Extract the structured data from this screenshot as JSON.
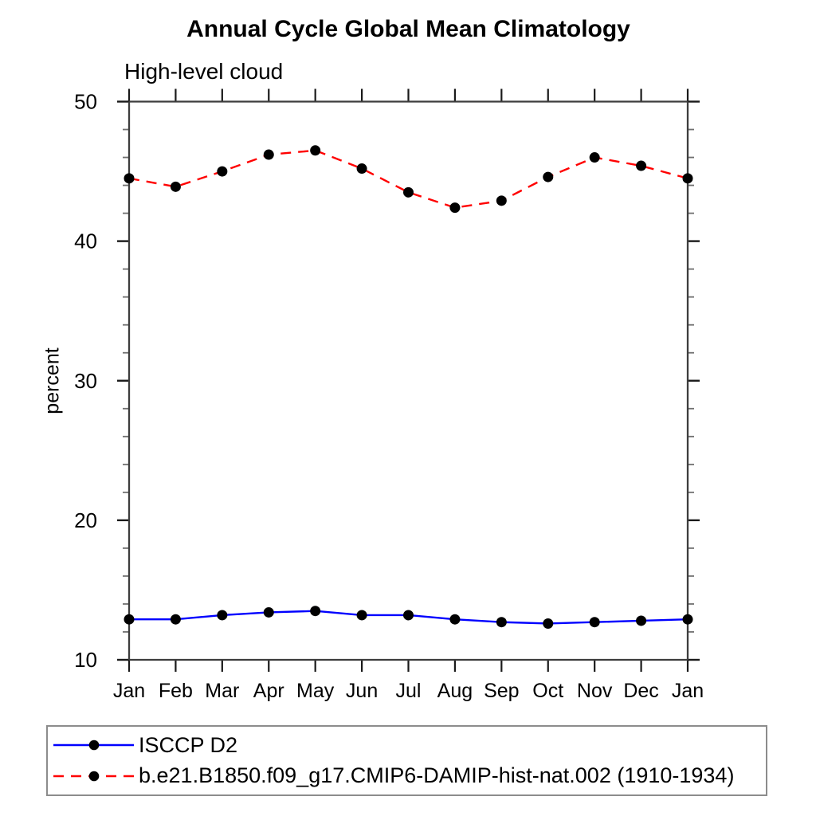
{
  "title": "Annual Cycle Global Mean Climatology",
  "subtitle": "High-level cloud",
  "ylabel": "percent",
  "colors": {
    "background": "#ffffff",
    "axis_box": "#3d3d3d",
    "major_tick": "#1a1a1a",
    "minor_tick": "#707070",
    "marker": "#000000",
    "legend_border": "#8c8c8c",
    "series_blue": "#0000ff",
    "series_red": "#ff0000"
  },
  "chart_data": {
    "type": "line",
    "categories": [
      "Jan",
      "Feb",
      "Mar",
      "Apr",
      "May",
      "Jun",
      "Jul",
      "Aug",
      "Sep",
      "Oct",
      "Nov",
      "Dec",
      "Jan"
    ],
    "series": [
      {
        "name": "ISCCP D2",
        "color": "#0000ff",
        "dash": "solid",
        "marker": "filled-circle",
        "marker_color": "#000000",
        "values": [
          12.9,
          12.9,
          13.2,
          13.4,
          13.5,
          13.2,
          13.2,
          12.9,
          12.7,
          12.6,
          12.7,
          12.8,
          12.9
        ]
      },
      {
        "name": "b.e21.B1850.f09_g17.CMIP6-DAMIP-hist-nat.002 (1910-1934)",
        "color": "#ff0000",
        "dash": "dashed",
        "marker": "filled-circle",
        "marker_color": "#000000",
        "values": [
          44.5,
          43.9,
          45.0,
          46.2,
          46.5,
          45.2,
          43.5,
          42.4,
          42.9,
          44.6,
          46.0,
          45.4,
          44.5
        ]
      }
    ],
    "xlabel": "",
    "ylabel": "percent",
    "ylim": [
      10,
      50
    ],
    "yticks": [
      10,
      20,
      30,
      40,
      50
    ],
    "y_minor_step": 2,
    "grid": false,
    "legend_position": "bottom-left-box"
  }
}
